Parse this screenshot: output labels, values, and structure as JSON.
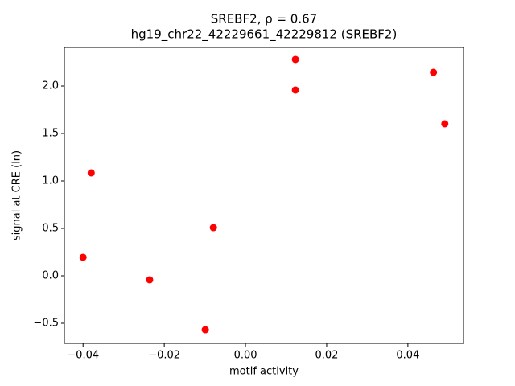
{
  "chart_data": {
    "type": "scatter",
    "title": "SREBF2, ρ = 0.67",
    "subtitle": "hg19_chr22_42229661_42229812 (SREBF2)",
    "x_label": "motif activity",
    "y_label": "signal at CRE (ln)",
    "color": "#ff0000",
    "x": [
      0.0123,
      0.0123,
      0.0463,
      0.0491,
      -0.038,
      -0.0079,
      -0.04,
      -0.0236,
      -0.0099
    ],
    "values": [
      2.28,
      1.958,
      2.144,
      1.602,
      1.085,
      0.508,
      0.195,
      -0.042,
      -0.568
    ],
    "xlim": [
      -0.0446,
      0.0537
    ],
    "ylim": [
      -0.712,
      2.407
    ],
    "xticks": [
      {
        "value": -0.04,
        "label": "−0.04"
      },
      {
        "value": -0.02,
        "label": "−0.02"
      },
      {
        "value": 0,
        "label": "0.00"
      },
      {
        "value": 0.02,
        "label": "0.02"
      },
      {
        "value": 0.04,
        "label": "0.04"
      }
    ],
    "yticks": [
      {
        "value": -0.5,
        "label": "−0.5"
      },
      {
        "value": 0,
        "label": "0.0"
      },
      {
        "value": 0.5,
        "label": "0.5"
      },
      {
        "value": 1,
        "label": "1.0"
      },
      {
        "value": 1.5,
        "label": "1.5"
      },
      {
        "value": 2,
        "label": "2.0"
      }
    ],
    "grid": false
  }
}
